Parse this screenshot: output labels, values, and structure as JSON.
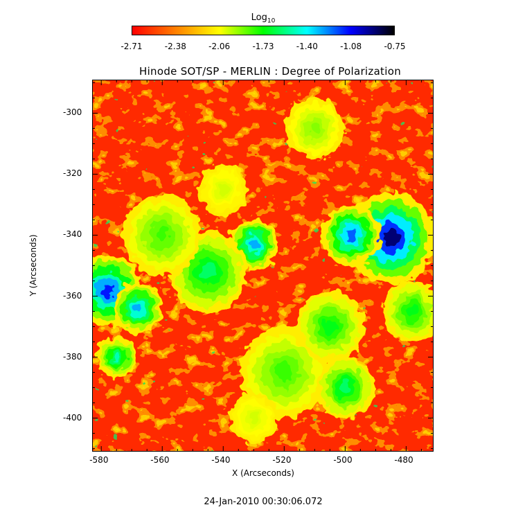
{
  "chart_data": {
    "type": "heatmap",
    "title": "Hinode SOT/SP - MERLIN : Degree of Polarization",
    "xlabel": "X (Arcseconds)",
    "ylabel": "Y (Arcseconds)",
    "xlim": [
      -583,
      -471
    ],
    "ylim": [
      -411,
      -289
    ],
    "x_ticks": [
      -580,
      -560,
      -540,
      -520,
      -500,
      -480
    ],
    "y_ticks": [
      -300,
      -320,
      -340,
      -360,
      -380,
      -400
    ],
    "colorbar": {
      "title": "Log",
      "title_sub": "10",
      "ticks": [
        "-2.71",
        "-2.38",
        "-2.06",
        "-1.73",
        "-1.40",
        "-1.08",
        "-0.75"
      ],
      "range": [
        -2.71,
        -0.75
      ],
      "colormap": [
        "#ff0000",
        "#ff8000",
        "#ffff00",
        "#00ff00",
        "#00ffff",
        "#0000ff",
        "#000000"
      ]
    },
    "features": [
      {
        "x": -485,
        "y": -341,
        "value": -0.9,
        "r": 9
      },
      {
        "x": -498,
        "y": -340,
        "value": -1.2,
        "r": 6
      },
      {
        "x": -578,
        "y": -358,
        "value": -1.1,
        "r": 7
      },
      {
        "x": -568,
        "y": -364,
        "value": -1.3,
        "r": 5
      },
      {
        "x": -530,
        "y": -343,
        "value": -1.3,
        "r": 5
      },
      {
        "x": -545,
        "y": -352,
        "value": -1.6,
        "r": 8
      },
      {
        "x": -520,
        "y": -385,
        "value": -1.8,
        "r": 9
      },
      {
        "x": -505,
        "y": -370,
        "value": -1.7,
        "r": 7
      },
      {
        "x": -560,
        "y": -340,
        "value": -1.8,
        "r": 8
      },
      {
        "x": -478,
        "y": -365,
        "value": -1.7,
        "r": 6
      },
      {
        "x": -500,
        "y": -390,
        "value": -1.6,
        "r": 6
      },
      {
        "x": -510,
        "y": -305,
        "value": -1.9,
        "r": 6
      },
      {
        "x": -540,
        "y": -325,
        "value": -2.0,
        "r": 5
      },
      {
        "x": -575,
        "y": -380,
        "value": -1.5,
        "r": 4
      },
      {
        "x": -530,
        "y": -400,
        "value": -2.0,
        "r": 5
      }
    ]
  },
  "timestamp": "24-Jan-2010 00:30:06.072"
}
